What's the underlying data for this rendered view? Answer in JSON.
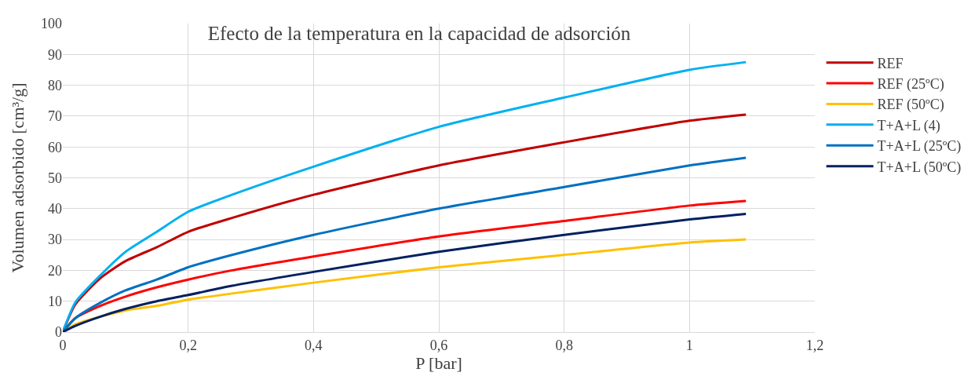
{
  "chart_data": {
    "type": "line",
    "title": "Efecto de la temperatura en la capacidad de adsorción",
    "xlabel": "P [bar]",
    "ylabel": "Volumen adsorbido [cm³/g]",
    "x": [
      0,
      0.02,
      0.06,
      0.1,
      0.15,
      0.2,
      0.27,
      0.4,
      0.6,
      0.8,
      1.0,
      1.09
    ],
    "series": [
      {
        "name": "REF",
        "color": "#c00000",
        "values": [
          0,
          9,
          17.5,
          23,
          27.5,
          32.5,
          37,
          44.5,
          54,
          61.5,
          68.5,
          70.5
        ]
      },
      {
        "name": "REF (25ºC)",
        "color": "#ff0000",
        "values": [
          0,
          4.5,
          8.5,
          11.5,
          14.5,
          17,
          20,
          24.5,
          31,
          36,
          41,
          42.5
        ]
      },
      {
        "name": "REF (50ºC)",
        "color": "#ffc000",
        "values": [
          0,
          2.5,
          5,
          7,
          8.5,
          10.5,
          12.5,
          16,
          21,
          25,
          29,
          30
        ]
      },
      {
        "name": "T+A+L (4)",
        "color": "#00b0f0",
        "values": [
          0,
          9.6,
          18.4,
          26,
          32.5,
          39,
          44.5,
          53.6,
          66.5,
          76,
          85,
          87.5
        ]
      },
      {
        "name": "T+A+L (25ºC)",
        "color": "#0070c0",
        "values": [
          0,
          4.5,
          9.5,
          13.5,
          17,
          21,
          25,
          31.5,
          40,
          47,
          54,
          56.5
        ]
      },
      {
        "name": "T+A+L (50ºC)",
        "color": "#002060",
        "values": [
          0,
          2,
          5,
          7.5,
          10,
          12,
          15,
          19.5,
          26,
          31.5,
          36.5,
          38.3
        ]
      }
    ],
    "xlim": [
      0,
      1.2
    ],
    "xticks": [
      0,
      {
        "value": 0.2,
        "label": "0,2"
      },
      {
        "value": 0.4,
        "label": "0,4"
      },
      {
        "value": 0.6,
        "label": "0,6"
      },
      {
        "value": 0.8,
        "label": "0,8"
      },
      1,
      {
        "value": 1.2,
        "label": "1,2"
      }
    ],
    "ylim": [
      0,
      100
    ],
    "yticks": [
      0,
      10,
      20,
      30,
      40,
      50,
      60,
      70,
      80,
      90,
      100
    ],
    "grid": true,
    "legend": "right",
    "marker": "none",
    "line_style": "solid"
  }
}
